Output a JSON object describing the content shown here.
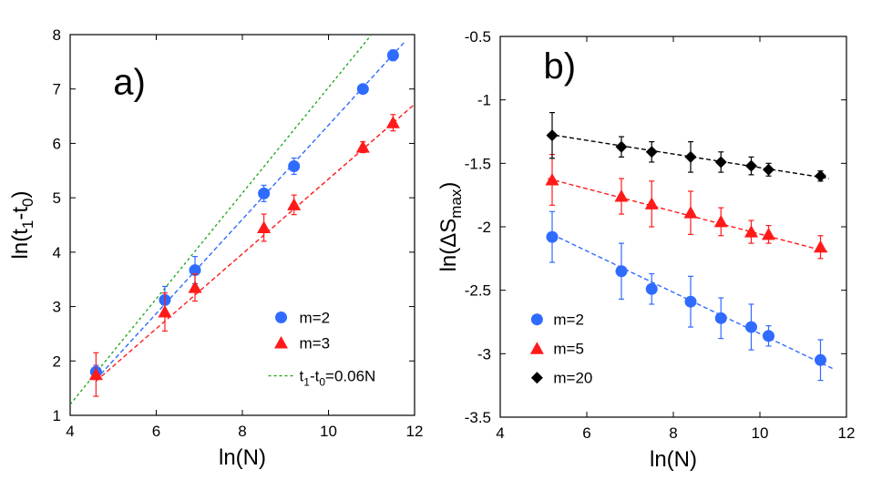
{
  "chart_data": [
    {
      "type": "scatter",
      "panel_label": "a)",
      "xlabel": "ln(N)",
      "ylabel": {
        "main": "ln(t",
        "sub1": "1",
        "mid": "-t",
        "sub2": "0",
        "end": ")"
      },
      "xlim": [
        4,
        12
      ],
      "ylim": [
        1,
        8
      ],
      "xticks": [
        4,
        6,
        8,
        10,
        12
      ],
      "yticks": [
        1,
        2,
        3,
        4,
        5,
        6,
        7,
        8
      ],
      "legend_position": "lower-right",
      "series": [
        {
          "name": "m=2",
          "marker": "circle",
          "color": "#2f6bff",
          "x": [
            4.6,
            6.2,
            6.9,
            8.5,
            9.2,
            10.8,
            11.5
          ],
          "y": [
            1.8,
            3.12,
            3.67,
            5.08,
            5.58,
            7.0,
            7.62
          ],
          "err": [
            0.12,
            0.25,
            0.25,
            0.15,
            0.15,
            0.08,
            0.1
          ],
          "fit": {
            "x": [
              4.6,
              11.75
            ],
            "y": [
              1.66,
              7.85
            ],
            "color": "#2f6bff"
          }
        },
        {
          "name": "m=3",
          "marker": "triangle",
          "color": "#ff1a1a",
          "x": [
            4.6,
            6.2,
            6.9,
            8.5,
            9.2,
            10.8,
            11.5
          ],
          "y": [
            1.75,
            2.9,
            3.35,
            4.45,
            4.87,
            5.93,
            6.38
          ],
          "err": [
            0.4,
            0.35,
            0.25,
            0.25,
            0.18,
            0.1,
            0.15
          ],
          "fit": {
            "x": [
              4.6,
              12
            ],
            "y": [
              1.63,
              6.72
            ],
            "color": "#ff1a1a"
          }
        }
      ],
      "reference_line": {
        "label": {
          "t": "t",
          "sub1": "1",
          "mid": "-t",
          "sub2": "0",
          "end": "=0.06N"
        },
        "x": [
          4,
          11.0
        ],
        "y": [
          1.2,
          8.0
        ],
        "color": "#22aa22"
      }
    },
    {
      "type": "scatter",
      "panel_label": "b)",
      "xlabel": "ln(N)",
      "ylabel": {
        "main": "ln(ΔS",
        "sub1": "max",
        "end": ")"
      },
      "xlim": [
        4,
        12
      ],
      "ylim": [
        -3.5,
        -0.5
      ],
      "xticks": [
        4,
        6,
        8,
        10,
        12
      ],
      "yticks": [
        -3.5,
        -3,
        -2.5,
        -2,
        -1.5,
        -1,
        -0.5
      ],
      "ytick_labels": [
        "-3.5",
        "-3",
        "-2.5",
        "-2",
        "-1.5",
        "-1",
        "-0.5"
      ],
      "legend_position": "lower-left",
      "series": [
        {
          "name": "m=2",
          "marker": "circle",
          "color": "#2f6bff",
          "x": [
            5.2,
            6.8,
            7.5,
            8.4,
            9.1,
            9.8,
            10.2,
            11.4
          ],
          "y": [
            -2.08,
            -2.35,
            -2.49,
            -2.59,
            -2.72,
            -2.79,
            -2.86,
            -3.05
          ],
          "err": [
            0.2,
            0.22,
            0.12,
            0.2,
            0.16,
            0.18,
            0.08,
            0.16
          ],
          "fit": {
            "x": [
              5.2,
              11.7
            ],
            "y": [
              -2.06,
              -3.12
            ],
            "color": "#2f6bff"
          }
        },
        {
          "name": "m=5",
          "marker": "triangle",
          "color": "#ff1a1a",
          "x": [
            5.2,
            6.8,
            7.5,
            8.4,
            9.1,
            9.8,
            10.2,
            11.4
          ],
          "y": [
            -1.63,
            -1.76,
            -1.82,
            -1.89,
            -1.96,
            -2.04,
            -2.06,
            -2.16
          ],
          "err": [
            0.2,
            0.14,
            0.18,
            0.17,
            0.11,
            0.09,
            0.07,
            0.09
          ],
          "fit": {
            "x": [
              5.1,
              11.6
            ],
            "y": [
              -1.62,
              -2.2
            ],
            "color": "#ff1a1a"
          }
        },
        {
          "name": "m=20",
          "marker": "diamond",
          "color": "#000000",
          "x": [
            5.2,
            6.8,
            7.5,
            8.4,
            9.1,
            9.8,
            10.2,
            11.4
          ],
          "y": [
            -1.28,
            -1.37,
            -1.41,
            -1.45,
            -1.49,
            -1.52,
            -1.55,
            -1.6
          ],
          "err": [
            0.18,
            0.08,
            0.08,
            0.12,
            0.08,
            0.07,
            0.05,
            0.04
          ],
          "fit": {
            "x": [
              5.1,
              11.6
            ],
            "y": [
              -1.27,
              -1.62
            ],
            "color": "#000000"
          }
        }
      ]
    }
  ]
}
